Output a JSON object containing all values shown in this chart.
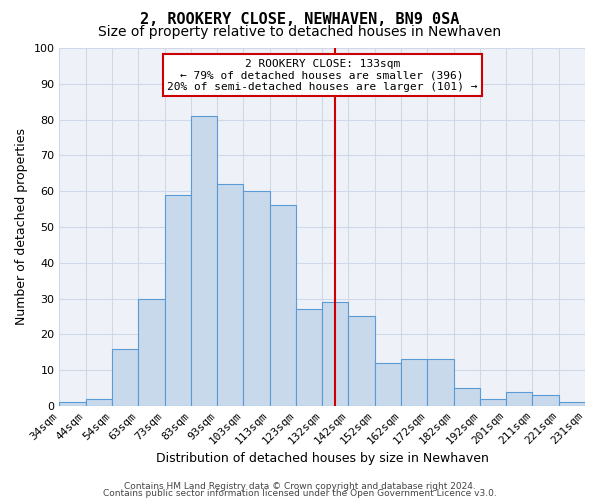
{
  "title": "2, ROOKERY CLOSE, NEWHAVEN, BN9 0SA",
  "subtitle": "Size of property relative to detached houses in Newhaven",
  "xlabel": "Distribution of detached houses by size in Newhaven",
  "ylabel": "Number of detached properties",
  "bar_labels": [
    "34sqm",
    "44sqm",
    "54sqm",
    "63sqm",
    "73sqm",
    "83sqm",
    "93sqm",
    "103sqm",
    "113sqm",
    "123sqm",
    "132sqm",
    "142sqm",
    "152sqm",
    "162sqm",
    "172sqm",
    "182sqm",
    "192sqm",
    "201sqm",
    "211sqm",
    "221sqm",
    "231sqm"
  ],
  "bar_heights": [
    1,
    2,
    16,
    30,
    59,
    81,
    62,
    60,
    56,
    27,
    29,
    25,
    12,
    13,
    13,
    5,
    2,
    4,
    3,
    1
  ],
  "bar_color": "#c9d9ec",
  "bar_edge_color": "#5b9bd5",
  "vline_x_index": 10,
  "annotation_text_line1": "2 ROOKERY CLOSE: 133sqm",
  "annotation_text_line2": "← 79% of detached houses are smaller (396)",
  "annotation_text_line3": "20% of semi-detached houses are larger (101) →",
  "annotation_box_color": "#ffffff",
  "annotation_box_edge_color": "#cc0000",
  "vline_color": "#cc0000",
  "ylim": [
    0,
    100
  ],
  "yticks": [
    0,
    10,
    20,
    30,
    40,
    50,
    60,
    70,
    80,
    90,
    100
  ],
  "grid_color": "#d0d8e8",
  "bg_color": "#eef2f8",
  "footer_line1": "Contains HM Land Registry data © Crown copyright and database right 2024.",
  "footer_line2": "Contains public sector information licensed under the Open Government Licence v3.0.",
  "title_fontsize": 11,
  "subtitle_fontsize": 10,
  "xlabel_fontsize": 9,
  "ylabel_fontsize": 9,
  "tick_fontsize": 8,
  "footer_fontsize": 6.5,
  "annotation_fontsize": 8
}
